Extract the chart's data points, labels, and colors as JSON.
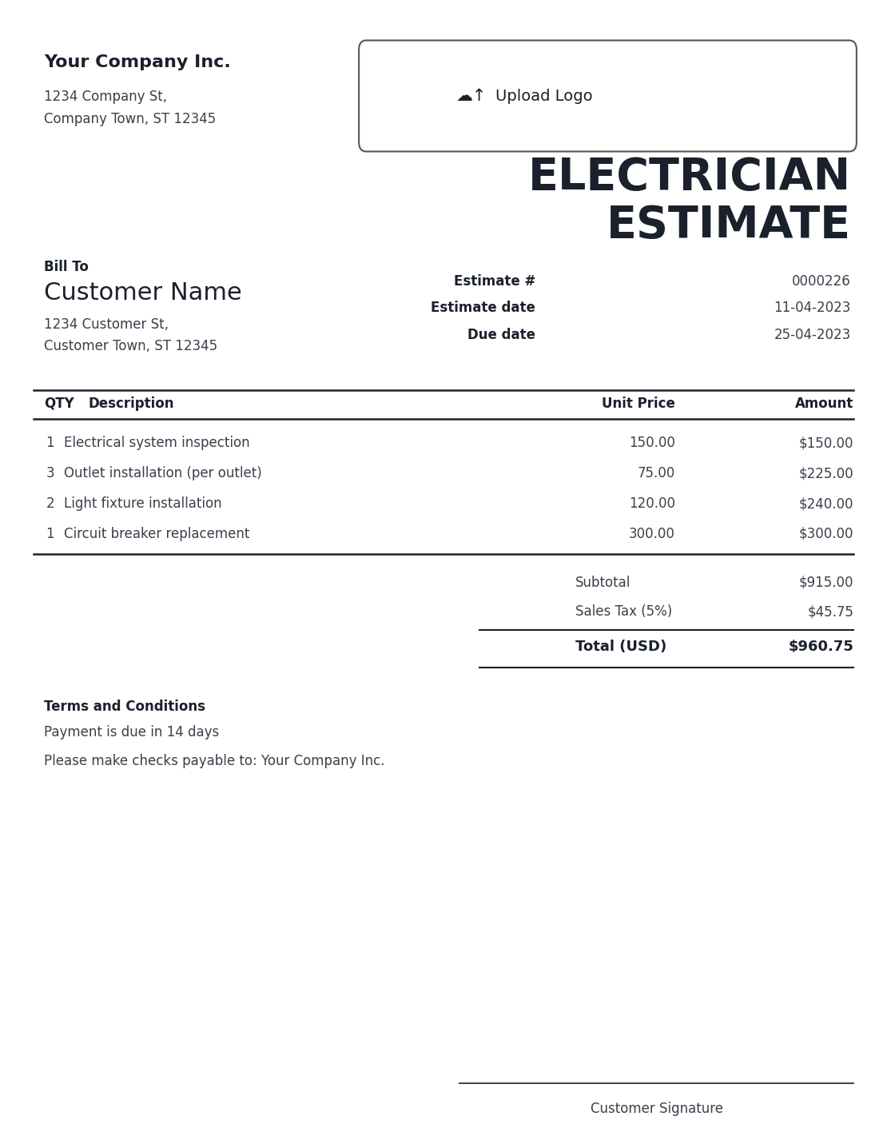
{
  "company_name": "Your Company Inc.",
  "company_address1": "1234 Company St,",
  "company_address2": "Company Town, ST 12345",
  "title_line1": "ELECTRICIAN",
  "title_line2": "ESTIMATE",
  "bill_to_label": "Bill To",
  "customer_name": "Customer Name",
  "customer_address1": "1234 Customer St,",
  "customer_address2": "Customer Town, ST 12345",
  "estimate_label": "Estimate #",
  "estimate_value": "0000226",
  "estimate_date_label": "Estimate date",
  "estimate_date_value": "11-04-2023",
  "due_date_label": "Due date",
  "due_date_value": "25-04-2023",
  "table_headers": [
    "QTY",
    "Description",
    "Unit Price",
    "Amount"
  ],
  "line_items": [
    {
      "qty": "1",
      "description": "Electrical system inspection",
      "unit_price": "150.00",
      "amount": "$150.00"
    },
    {
      "qty": "3",
      "description": "Outlet installation (per outlet)",
      "unit_price": "75.00",
      "amount": "$225.00"
    },
    {
      "qty": "2",
      "description": "Light fixture installation",
      "unit_price": "120.00",
      "amount": "$240.00"
    },
    {
      "qty": "1",
      "description": "Circuit breaker replacement",
      "unit_price": "300.00",
      "amount": "$300.00"
    }
  ],
  "subtotal_label": "Subtotal",
  "subtotal_value": "$915.00",
  "tax_label": "Sales Tax (5%)",
  "tax_value": "$45.75",
  "total_label": "Total (USD)",
  "total_value": "$960.75",
  "terms_label": "Terms and Conditions",
  "terms_line1": "Payment is due in 14 days",
  "terms_line2": "Please make checks payable to: Your Company Inc.",
  "signature_label": "Customer Signature",
  "upload_logo_text": "Upload Logo",
  "bg_color": "#ffffff",
  "text_color": "#3a3f4a",
  "dark_color": "#1a202c",
  "border_color": "#555555"
}
